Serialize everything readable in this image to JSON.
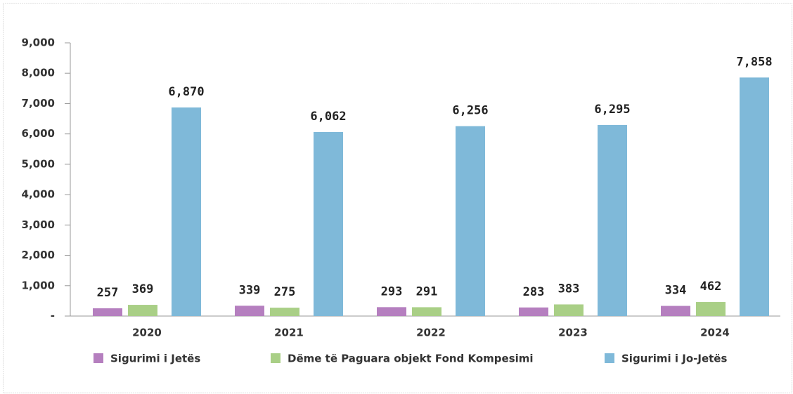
{
  "chart_data": {
    "type": "bar",
    "categories": [
      "2020",
      "2021",
      "2022",
      "2023",
      "2024"
    ],
    "series": [
      {
        "name": "Sigurimi i Jetës",
        "color": "#b57fbf",
        "values": [
          257,
          339,
          293,
          283,
          334
        ],
        "value_labels": [
          "257",
          "339",
          "293",
          "283",
          "334"
        ]
      },
      {
        "name": "Dëme të Paguara objekt Fond Kompesimi",
        "color": "#a9cf86",
        "values": [
          369,
          275,
          291,
          383,
          462
        ],
        "value_labels": [
          "369",
          "275",
          "291",
          "383",
          "462"
        ]
      },
      {
        "name": "Sigurimi i Jo-Jetës",
        "color": "#7fb9d9",
        "values": [
          6870,
          6062,
          6256,
          6295,
          7858
        ],
        "value_labels": [
          "6,870",
          "6,062",
          "6,256",
          "6,295",
          "7,858"
        ]
      }
    ],
    "ylim": [
      0,
      9000
    ],
    "yticks": [
      {
        "value": 0,
        "label": "-"
      },
      {
        "value": 1000,
        "label": "1,000"
      },
      {
        "value": 2000,
        "label": "2,000"
      },
      {
        "value": 3000,
        "label": "3,000"
      },
      {
        "value": 4000,
        "label": "4,000"
      },
      {
        "value": 5000,
        "label": "5,000"
      },
      {
        "value": 6000,
        "label": "6,000"
      },
      {
        "value": 7000,
        "label": "7,000"
      },
      {
        "value": 8000,
        "label": "8,000"
      },
      {
        "value": 9000,
        "label": "9,000"
      }
    ],
    "legend": "bottom"
  }
}
